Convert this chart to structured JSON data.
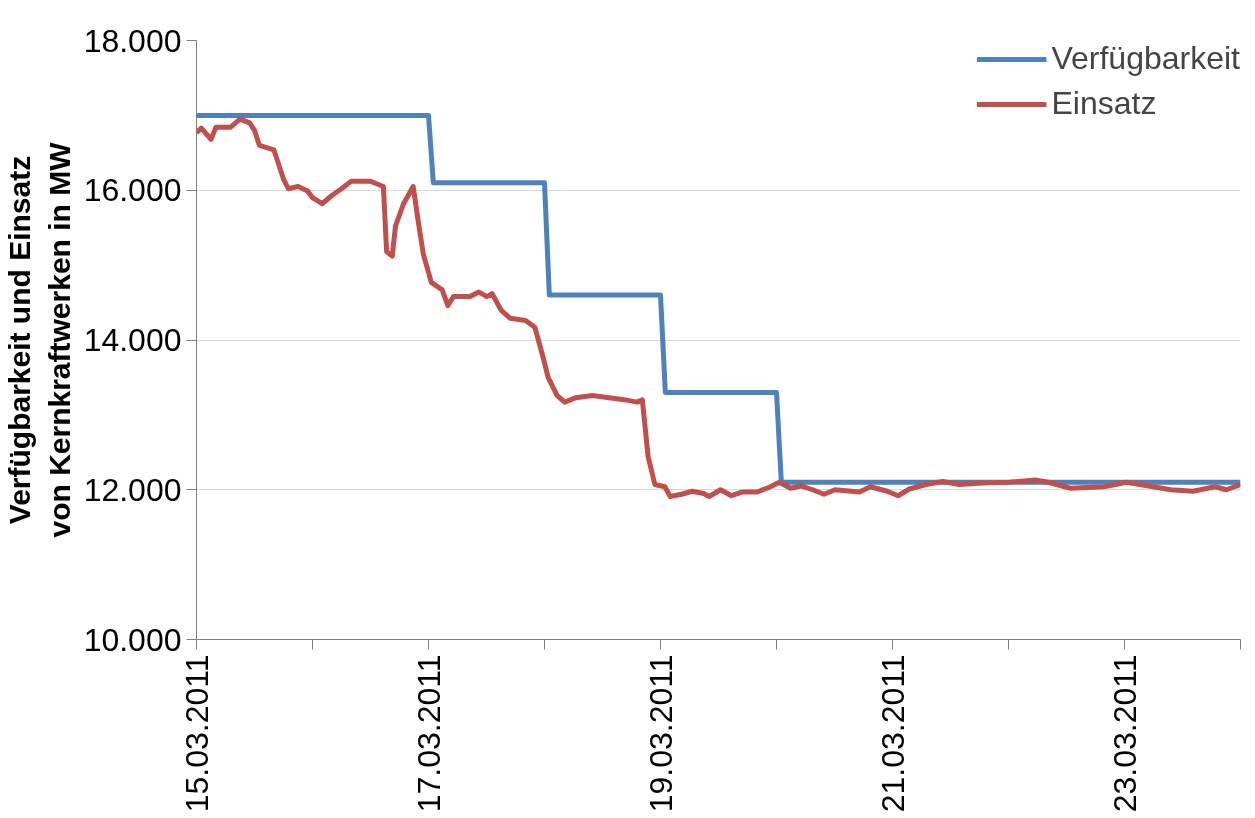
{
  "chart_data": {
    "type": "line",
    "ylabel": "Verfügbarkeit und Einsatz von Kernkraftwerken in MW",
    "xlim": [
      "2011-03-15",
      "2011-03-24"
    ],
    "xticks": [
      {
        "value": "2011-03-15",
        "label": "15.03.2011"
      },
      {
        "value": "2011-03-16",
        "label": null
      },
      {
        "value": "2011-03-17",
        "label": "17.03.2011"
      },
      {
        "value": "2011-03-18",
        "label": null
      },
      {
        "value": "2011-03-19",
        "label": "19.03.2011"
      },
      {
        "value": "2011-03-20",
        "label": null
      },
      {
        "value": "2011-03-21",
        "label": "21.03.2011"
      },
      {
        "value": "2011-03-22",
        "label": null
      },
      {
        "value": "2011-03-23",
        "label": "23.03.2011"
      },
      {
        "value": "2011-03-24",
        "label": null
      }
    ],
    "ylim": [
      10000,
      18000
    ],
    "yticks": [
      {
        "value": 10000,
        "label": "10.000"
      },
      {
        "value": 12000,
        "label": "12.000"
      },
      {
        "value": 14000,
        "label": "14.000"
      },
      {
        "value": 16000,
        "label": "16.000"
      },
      {
        "value": 18000,
        "label": "18.000"
      }
    ],
    "grid": "y",
    "legend": "top right",
    "line_style": "solid",
    "series": [
      {
        "name": "Verfügbarkeit",
        "color": "#4f81bd",
        "x": [
          "2011-03-15T00:00",
          "2011-03-17T00:00",
          "2011-03-17T01:00",
          "2011-03-18T00:00",
          "2011-03-18T01:00",
          "2011-03-19T00:00",
          "2011-03-19T01:00",
          "2011-03-20T00:00",
          "2011-03-20T01:00",
          "2011-03-24T00:00"
        ],
        "values": [
          17000,
          17000,
          16100,
          16100,
          14600,
          14600,
          13300,
          13300,
          12100,
          12100
        ]
      },
      {
        "name": "Einsatz",
        "color": "#c0504d",
        "x": [
          "2011-03-15T00:00",
          "2011-03-15T01:00",
          "2011-03-15T03:00",
          "2011-03-15T04:00",
          "2011-03-15T07:00",
          "2011-03-15T09:00",
          "2011-03-15T11:00",
          "2011-03-15T12:00",
          "2011-03-15T13:00",
          "2011-03-15T16:00",
          "2011-03-15T18:00",
          "2011-03-15T19:00",
          "2011-03-15T21:00",
          "2011-03-15T23:00",
          "2011-03-16T00:00",
          "2011-03-16T02:00",
          "2011-03-16T04:00",
          "2011-03-16T06:00",
          "2011-03-16T08:00",
          "2011-03-16T12:00",
          "2011-03-16T14:40",
          "2011-03-16T15:20",
          "2011-03-16T16:30",
          "2011-03-16T17:10",
          "2011-03-16T18:50",
          "2011-03-16T20:50",
          "2011-03-16T21:50",
          "2011-03-16T22:55",
          "2011-03-17T00:35",
          "2011-03-17T02:50",
          "2011-03-17T04:00",
          "2011-03-17T05:10",
          "2011-03-17T08:35",
          "2011-03-17T10:25",
          "2011-03-17T12:05",
          "2011-03-17T13:10",
          "2011-03-17T15:00",
          "2011-03-17T16:55",
          "2011-03-17T20:05",
          "2011-03-17T22:00",
          "2011-03-17T23:35",
          "2011-03-18T00:45",
          "2011-03-18T02:35",
          "2011-03-18T04:10",
          "2011-03-18T06:30",
          "2011-03-18T09:55",
          "2011-03-18T13:20",
          "2011-03-18T16:50",
          "2011-03-18T19:05",
          "2011-03-18T20:15",
          "2011-03-18T21:25",
          "2011-03-18T22:50",
          "2011-03-19T00:55",
          "2011-03-19T02:00",
          "2011-03-19T04:20",
          "2011-03-19T06:35",
          "2011-03-19T08:55",
          "2011-03-19T10:05",
          "2011-03-19T12:25",
          "2011-03-19T14:40",
          "2011-03-19T17:00",
          "2011-03-19T20:00",
          "2011-03-19T22:45",
          "2011-03-20T00:35",
          "2011-03-20T02:55",
          "2011-03-20T05:10",
          "2011-03-20T07:30",
          "2011-03-20T09:50",
          "2011-03-20T12:05",
          "2011-03-20T17:10",
          "2011-03-20T19:25",
          "2011-03-20T22:55",
          "2011-03-21T01:10",
          "2011-03-21T03:30",
          "2011-03-21T06:55",
          "2011-03-21T10:25",
          "2011-03-21T13:50",
          "2011-03-21T18:30",
          "2011-03-22T00:10",
          "2011-03-22T05:30",
          "2011-03-22T08:15",
          "2011-03-22T12:50",
          "2011-03-22T19:45",
          "2011-03-23T00:25",
          "2011-03-23T05:00",
          "2011-03-23T09:35",
          "2011-03-23T14:10",
          "2011-03-23T18:45",
          "2011-03-23T21:05",
          "2011-03-24T00:00"
        ],
        "values": [
          16770,
          16830,
          16680,
          16840,
          16840,
          16950,
          16900,
          16800,
          16600,
          16540,
          16150,
          16020,
          16050,
          15990,
          15900,
          15820,
          15930,
          16020,
          16120,
          16120,
          16050,
          15180,
          15120,
          15520,
          15820,
          16050,
          15600,
          15150,
          14770,
          14670,
          14460,
          14580,
          14580,
          14640,
          14580,
          14620,
          14400,
          14290,
          14260,
          14170,
          13800,
          13500,
          13260,
          13170,
          13230,
          13260,
          13230,
          13200,
          13170,
          13200,
          12450,
          12070,
          12040,
          11910,
          11940,
          11980,
          11950,
          11910,
          12000,
          11920,
          11970,
          11970,
          12040,
          12100,
          12020,
          12050,
          12000,
          11940,
          12000,
          11970,
          12040,
          11980,
          11920,
          12010,
          12070,
          12110,
          12070,
          12090,
          12100,
          12130,
          12100,
          12020,
          12040,
          12100,
          12050,
          12000,
          11980,
          12040,
          12000,
          12070
        ]
      }
    ]
  }
}
